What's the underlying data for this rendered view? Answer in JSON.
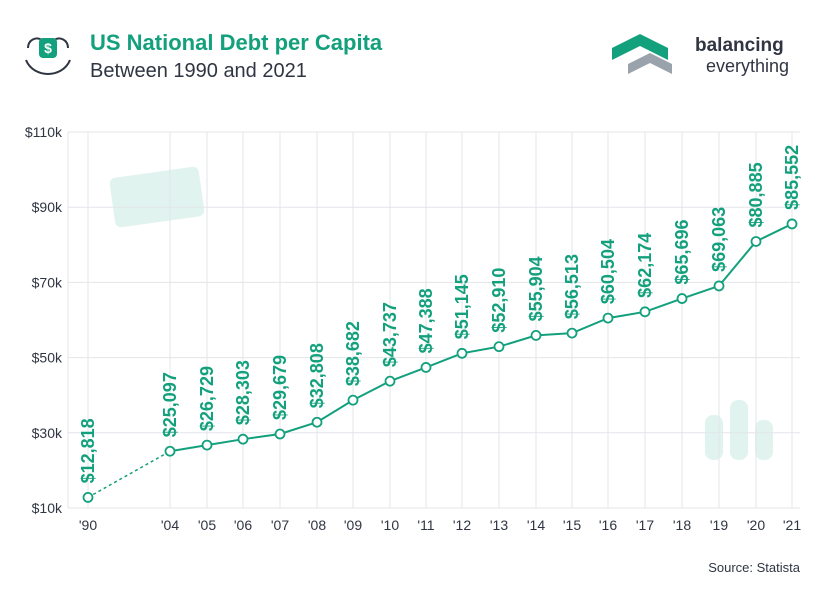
{
  "header": {
    "title": "US National Debt per Capita",
    "subtitle": "Between 1990 and 2021",
    "brand_line1": "balancing",
    "brand_line2": "everything",
    "source": "Source: Statista"
  },
  "colors": {
    "accent": "#13a07d",
    "text": "#2f3542",
    "grid": "#e3e6ea"
  },
  "icons": [
    "money-hand-icon",
    "balancing-everything-logo-icon"
  ],
  "chart_data": {
    "type": "line",
    "title": "US National Debt per Capita",
    "subtitle": "Between 1990 and 2021",
    "xlabel": "",
    "ylabel": "",
    "ylim": [
      10000,
      110000
    ],
    "yticks": [
      10000,
      30000,
      50000,
      70000,
      90000,
      110000
    ],
    "ytick_labels": [
      "$10k",
      "$30k",
      "$50k",
      "$70k",
      "$90k",
      "$110k"
    ],
    "categories": [
      "'90",
      "'04",
      "'05",
      "'06",
      "'07",
      "'08",
      "'09",
      "'10",
      "'11",
      "'12",
      "'13",
      "'14",
      "'15",
      "'16",
      "'17",
      "'18",
      "'19",
      "'20",
      "'21"
    ],
    "values": [
      12818,
      25097,
      26729,
      28303,
      29679,
      32808,
      38682,
      43737,
      47388,
      51145,
      52910,
      55904,
      56513,
      60504,
      62174,
      65696,
      69063,
      80885,
      85552
    ],
    "data_labels": [
      "$12,818",
      "$25,097",
      "$26,729",
      "$28,303",
      "$29,679",
      "$32,808",
      "$38,682",
      "$43,737",
      "$47,388",
      "$51,145",
      "$52,910",
      "$55,904",
      "$56,513",
      "$60,504",
      "$62,174",
      "$65,696",
      "$69,063",
      "$80,885",
      "$85,552"
    ],
    "grid": true,
    "legend": "none",
    "dashed_segment": [
      "'90",
      "'04"
    ]
  }
}
